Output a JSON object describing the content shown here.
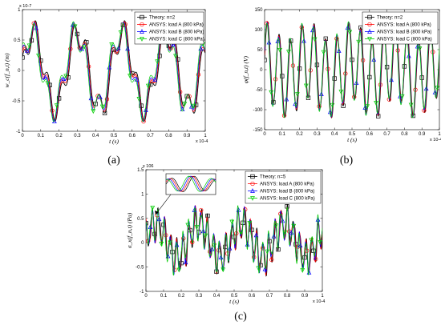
{
  "series_colors": [
    "#000000",
    "#ff0000",
    "#0000ff",
    "#00cc00"
  ],
  "chart_data": [
    {
      "type": "line",
      "panel_label": "(a)",
      "ylabel": "w_c(f_n,t) (m)",
      "xlabel": "t (s)",
      "x_multiplier": "x 10^-4",
      "y_multiplier": "x 10^-7",
      "xlim": [
        0,
        1
      ],
      "ylim": [
        -1,
        1
      ],
      "xticks": [
        "0",
        "0.1",
        "0.2",
        "0.3",
        "0.4",
        "0.5",
        "0.6",
        "0.7",
        "0.8",
        "0.9",
        "1"
      ],
      "yticks": [
        "-1",
        "-0.5",
        "0",
        "0.5",
        "1"
      ],
      "legend_position": "top-right",
      "series": [
        {
          "name": "Theory: n=2",
          "marker": "square"
        },
        {
          "name": "ANSYS: load A (800 kPa)",
          "marker": "circle"
        },
        {
          "name": "ANSYS: load B (800 kPa)",
          "marker": "triangle-up"
        },
        {
          "name": "ANSYS: load C (800 kPa)",
          "marker": "triangle-down"
        }
      ],
      "shape": {
        "periods": 4.1,
        "amp": 0.62,
        "harm_amp": 0.22,
        "harm_mult": 3.5,
        "offset": 0.0,
        "noise": 0.0
      }
    },
    {
      "type": "line",
      "panel_label": "(b)",
      "ylabel": "φ(f_n,t) (V)",
      "xlabel": "t (s)",
      "x_multiplier": "x 10^-4",
      "xlim": [
        0,
        1
      ],
      "ylim": [
        -150,
        150
      ],
      "xticks": [
        "0",
        "0.1",
        "0.2",
        "0.3",
        "0.4",
        "0.5",
        "0.6",
        "0.7",
        "0.8",
        "0.9",
        "1"
      ],
      "yticks": [
        "-150",
        "-100",
        "-50",
        "0",
        "50",
        "100",
        "150"
      ],
      "legend_position": "top-right",
      "series": [
        {
          "name": "Theory: n=2",
          "marker": "square"
        },
        {
          "name": "ANSYS: load A (800 kPa)",
          "marker": "circle"
        },
        {
          "name": "ANSYS: load B (800 kPa)",
          "marker": "triangle-up"
        },
        {
          "name": "ANSYS: load C (800 kPa)",
          "marker": "triangle-down"
        }
      ],
      "shape": {
        "periods": 15,
        "amp": 95,
        "harm_amp": 25,
        "harm_mult": 0.27,
        "offset": 0,
        "noise": 0.0
      }
    },
    {
      "type": "line",
      "panel_label": "(c)",
      "ylabel": "σ_x(f_n,t) (Pa)",
      "xlabel": "t (s)",
      "x_multiplier": "x 10^-4",
      "y_multiplier": "x 10^6",
      "xlim": [
        0,
        1
      ],
      "ylim": [
        -1,
        1.5
      ],
      "xticks": [
        "0",
        "0.1",
        "0.2",
        "0.3",
        "0.4",
        "0.5",
        "0.6",
        "0.7",
        "0.8",
        "0.9",
        "1"
      ],
      "yticks": [
        "-1",
        "-0.5",
        "0",
        "0.5",
        "1",
        "1.5"
      ],
      "legend_position": "top-right",
      "inset": "zoom on early peaks near t = 0.05",
      "series": [
        {
          "name": "Theory: n=5",
          "marker": "square"
        },
        {
          "name": "ANSYS: load A (800 kPa)",
          "marker": "circle"
        },
        {
          "name": "ANSYS: load B (800 kPa)",
          "marker": "triangle-up"
        },
        {
          "name": "ANSYS: load C (800 kPa)",
          "marker": "triangle-down"
        }
      ],
      "shape": {
        "periods": 4.1,
        "amp": 0.35,
        "harm_amp": 0.3,
        "harm_mult": 7,
        "offset": 0.05,
        "noise": 0.12
      }
    }
  ]
}
